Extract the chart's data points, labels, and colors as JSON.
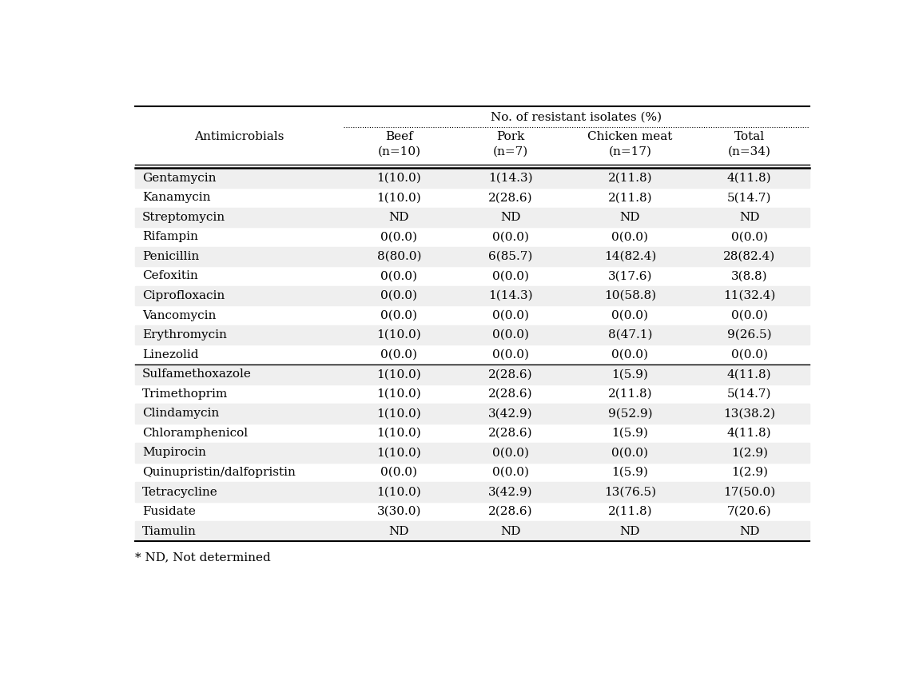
{
  "title_text": "No. of resistant isolates (%)",
  "col_header_line1": [
    "Antimicrobials",
    "Beef",
    "Pork",
    "Chicken meat",
    "Total"
  ],
  "col_header_line2": [
    "",
    "(n=10)",
    "(n=7)",
    "(n=17)",
    "(n=34)"
  ],
  "rows": [
    [
      "Gentamycin",
      "1(10.0)",
      "1(14.3)",
      "2(11.8)",
      "4(11.8)"
    ],
    [
      "Kanamycin",
      "1(10.0)",
      "2(28.6)",
      "2(11.8)",
      "5(14.7)"
    ],
    [
      "Streptomycin",
      "ND",
      "ND",
      "ND",
      "ND"
    ],
    [
      "Rifampin",
      "0(0.0)",
      "0(0.0)",
      "0(0.0)",
      "0(0.0)"
    ],
    [
      "Penicillin",
      "8(80.0)",
      "6(85.7)",
      "14(82.4)",
      "28(82.4)"
    ],
    [
      "Cefoxitin",
      "0(0.0)",
      "0(0.0)",
      "3(17.6)",
      "3(8.8)"
    ],
    [
      "Ciprofloxacin",
      "0(0.0)",
      "1(14.3)",
      "10(58.8)",
      "11(32.4)"
    ],
    [
      "Vancomycin",
      "0(0.0)",
      "0(0.0)",
      "0(0.0)",
      "0(0.0)"
    ],
    [
      "Erythromycin",
      "1(10.0)",
      "0(0.0)",
      "8(47.1)",
      "9(26.5)"
    ],
    [
      "Linezolid",
      "0(0.0)",
      "0(0.0)",
      "0(0.0)",
      "0(0.0)"
    ],
    [
      "Sulfamethoxazole",
      "1(10.0)",
      "2(28.6)",
      "1(5.9)",
      "4(11.8)"
    ],
    [
      "Trimethoprim",
      "1(10.0)",
      "2(28.6)",
      "2(11.8)",
      "5(14.7)"
    ],
    [
      "Clindamycin",
      "1(10.0)",
      "3(42.9)",
      "9(52.9)",
      "13(38.2)"
    ],
    [
      "Chloramphenicol",
      "1(10.0)",
      "2(28.6)",
      "1(5.9)",
      "4(11.8)"
    ],
    [
      "Mupirocin",
      "1(10.0)",
      "0(0.0)",
      "0(0.0)",
      "1(2.9)"
    ],
    [
      "Quinupristin/dalfopristin",
      "0(0.0)",
      "0(0.0)",
      "1(5.9)",
      "1(2.9)"
    ],
    [
      "Tetracycline",
      "1(10.0)",
      "3(42.9)",
      "13(76.5)",
      "17(50.0)"
    ],
    [
      "Fusidate",
      "3(30.0)",
      "2(28.6)",
      "2(11.8)",
      "7(20.6)"
    ],
    [
      "Tiamulin",
      "ND",
      "ND",
      "ND",
      "ND"
    ]
  ],
  "separator_after_row": 9,
  "shaded_rows": [
    0,
    2,
    4,
    6,
    8,
    10,
    12,
    14,
    16,
    18
  ],
  "footer_text": "* ND, Not determined",
  "bg_color": "#ffffff",
  "shade_color": "#efefef",
  "font_size": 11,
  "header_font_size": 11
}
